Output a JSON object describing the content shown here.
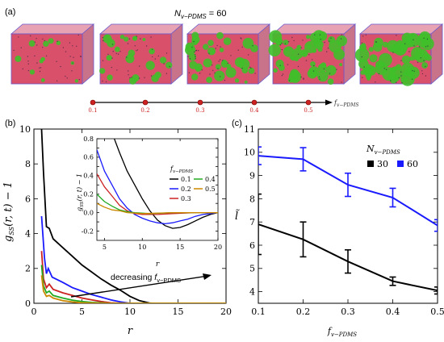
{
  "panel_a": {
    "label": "(a)",
    "title_sym": "N",
    "title_sub": "v−PDMS",
    "title_rest": " = 60",
    "cube_colors": {
      "red": "#d9506a",
      "green": "#3fbf2a",
      "pink": "#e7a3b3",
      "edge": "#6a5acd"
    },
    "green_fractions": [
      0.1,
      0.2,
      0.3,
      0.4,
      0.5
    ],
    "arrow_ticks": [
      "0.1",
      "0.2",
      "0.3",
      "0.4",
      "0.5"
    ],
    "arrow_label": "f",
    "arrow_label_sub": "v−PDMS"
  },
  "chart_data": [
    {
      "type": "line",
      "panel": "(b)",
      "ylabel_main": "g",
      "ylabel_sub": "SS",
      "ylabel_rest": "(r, t) − 1",
      "xlabel": "r",
      "xlim": [
        0,
        20
      ],
      "ylim": [
        0,
        10
      ],
      "xticks": [
        0,
        5,
        10,
        15,
        20
      ],
      "yticks": [
        0,
        2,
        4,
        6,
        8,
        10
      ],
      "annotation_text": "decreasing ",
      "annotation_sym": "f",
      "annotation_sub": "v−PDMS",
      "series": [
        {
          "name": "0.1",
          "color": "#000000",
          "points": [
            [
              0.8,
              10
            ],
            [
              1.0,
              7.5
            ],
            [
              1.3,
              4.4
            ],
            [
              1.6,
              4.3
            ],
            [
              2,
              3.7
            ],
            [
              3,
              3.2
            ],
            [
              4,
              2.7
            ],
            [
              5,
              2.2
            ],
            [
              6,
              1.8
            ],
            [
              7,
              1.4
            ],
            [
              8,
              1.05
            ],
            [
              9,
              0.75
            ],
            [
              10,
              0.4
            ],
            [
              11,
              0.15
            ],
            [
              12,
              0.02
            ],
            [
              14,
              -0.08
            ],
            [
              16,
              -0.05
            ],
            [
              20,
              0
            ]
          ]
        },
        {
          "name": "0.2",
          "color": "#1a1aff",
          "points": [
            [
              0.8,
              5
            ],
            [
              1.1,
              2.6
            ],
            [
              1.3,
              1.7
            ],
            [
              1.5,
              2.0
            ],
            [
              1.9,
              1.5
            ],
            [
              3,
              1.2
            ],
            [
              4,
              0.9
            ],
            [
              5,
              0.7
            ],
            [
              6,
              0.5
            ],
            [
              7,
              0.35
            ],
            [
              8,
              0.2
            ],
            [
              9,
              0.08
            ],
            [
              10,
              0.0
            ],
            [
              12,
              -0.05
            ],
            [
              20,
              0
            ]
          ]
        },
        {
          "name": "0.3",
          "color": "#cc2222",
          "points": [
            [
              0.8,
              3
            ],
            [
              1.0,
              1.4
            ],
            [
              1.3,
              0.9
            ],
            [
              1.6,
              1.1
            ],
            [
              2,
              0.8
            ],
            [
              3,
              0.6
            ],
            [
              4,
              0.45
            ],
            [
              5,
              0.3
            ],
            [
              6,
              0.2
            ],
            [
              7,
              0.1
            ],
            [
              8,
              0.03
            ],
            [
              10,
              -0.02
            ],
            [
              20,
              0
            ]
          ]
        },
        {
          "name": "0.4",
          "color": "#22aa22",
          "points": [
            [
              0.8,
              2.2
            ],
            [
              1.0,
              1.0
            ],
            [
              1.3,
              0.6
            ],
            [
              1.6,
              0.7
            ],
            [
              2,
              0.45
            ],
            [
              3,
              0.3
            ],
            [
              4,
              0.18
            ],
            [
              5,
              0.1
            ],
            [
              6,
              0.05
            ],
            [
              8,
              0.0
            ],
            [
              20,
              0
            ]
          ]
        },
        {
          "name": "0.5",
          "color": "#cc8800",
          "points": [
            [
              0.8,
              1.6
            ],
            [
              1.0,
              0.7
            ],
            [
              1.3,
              0.4
            ],
            [
              1.6,
              0.45
            ],
            [
              2,
              0.3
            ],
            [
              3,
              0.15
            ],
            [
              4,
              0.08
            ],
            [
              5,
              0.03
            ],
            [
              7,
              0.0
            ],
            [
              20,
              0
            ]
          ]
        }
      ]
    },
    {
      "type": "line",
      "panel": "(b) inset",
      "ylabel_main": "g",
      "ylabel_sub": "SS",
      "ylabel_rest": "(r, t) − 1",
      "xlabel": "r",
      "xlim": [
        4,
        20
      ],
      "ylim": [
        -0.3,
        0.8
      ],
      "xticks": [
        5,
        10,
        15,
        20
      ],
      "yticks": [
        -0.2,
        -0.1,
        0.0,
        0.1,
        0.2,
        0.3,
        0.4,
        0.5,
        0.6,
        0.7,
        0.8
      ],
      "ytick_labels": [
        "-0.2",
        "",
        "0.0",
        "",
        "0.2",
        "",
        "0.4",
        "",
        "0.6",
        "",
        "0.8"
      ],
      "legend_title_sym": "f",
      "legend_title_sub": "v−PDMS",
      "legend_position": "top-right",
      "series": [
        {
          "name": "0.1",
          "color": "#000000",
          "points": [
            [
              6.3,
              0.8
            ],
            [
              7,
              0.65
            ],
            [
              8,
              0.45
            ],
            [
              9,
              0.3
            ],
            [
              10,
              0.15
            ],
            [
              11,
              0.02
            ],
            [
              12,
              -0.08
            ],
            [
              13,
              -0.14
            ],
            [
              14,
              -0.17
            ],
            [
              15,
              -0.16
            ],
            [
              16,
              -0.13
            ],
            [
              17,
              -0.09
            ],
            [
              18,
              -0.05
            ],
            [
              19,
              -0.02
            ],
            [
              20,
              0.0
            ]
          ]
        },
        {
          "name": "0.2",
          "color": "#1a1aff",
          "points": [
            [
              4,
              0.68
            ],
            [
              5,
              0.45
            ],
            [
              6,
              0.3
            ],
            [
              7,
              0.15
            ],
            [
              8,
              0.05
            ],
            [
              9,
              -0.02
            ],
            [
              10,
              -0.06
            ],
            [
              11,
              -0.09
            ],
            [
              12,
              -0.11
            ],
            [
              13,
              -0.12
            ],
            [
              14,
              -0.11
            ],
            [
              15,
              -0.09
            ],
            [
              16,
              -0.07
            ],
            [
              17,
              -0.04
            ],
            [
              18,
              -0.02
            ],
            [
              19,
              -0.01
            ],
            [
              20,
              0.0
            ]
          ]
        },
        {
          "name": "0.3",
          "color": "#cc2222",
          "points": [
            [
              4,
              0.42
            ],
            [
              5,
              0.28
            ],
            [
              6,
              0.18
            ],
            [
              7,
              0.08
            ],
            [
              8,
              0.02
            ],
            [
              9,
              -0.01
            ],
            [
              10,
              -0.02
            ],
            [
              12,
              -0.02
            ],
            [
              14,
              -0.01
            ],
            [
              17,
              0.0
            ],
            [
              20,
              0.0
            ]
          ]
        },
        {
          "name": "0.4",
          "color": "#22aa22",
          "points": [
            [
              4,
              0.2
            ],
            [
              5,
              0.12
            ],
            [
              6,
              0.07
            ],
            [
              7,
              0.03
            ],
            [
              8,
              0.01
            ],
            [
              9,
              0.0
            ],
            [
              11,
              -0.01
            ],
            [
              14,
              0.0
            ],
            [
              20,
              0.0
            ]
          ]
        },
        {
          "name": "0.5",
          "color": "#cc8800",
          "points": [
            [
              4,
              0.1
            ],
            [
              5,
              0.06
            ],
            [
              6,
              0.03
            ],
            [
              7,
              0.02
            ],
            [
              8,
              0.0
            ],
            [
              10,
              -0.01
            ],
            [
              14,
              0.0
            ],
            [
              20,
              0.0
            ]
          ]
        }
      ]
    },
    {
      "type": "line",
      "panel": "(c)",
      "ylabel": "l̃",
      "xlabel_sym": "f",
      "xlabel_sub": "v−PDMS",
      "xlim": [
        0.1,
        0.5
      ],
      "ylim": [
        3.5,
        11
      ],
      "xticks": [
        0.1,
        0.2,
        0.3,
        0.4,
        0.5
      ],
      "yticks": [
        4,
        5,
        6,
        7,
        8,
        9,
        10,
        11
      ],
      "legend_title_sym": "N",
      "legend_title_sub": "v−PDMS",
      "legend_position": "top-right",
      "series": [
        {
          "name": "30",
          "color": "#000000",
          "x": [
            0.1,
            0.2,
            0.3,
            0.4,
            0.5
          ],
          "y": [
            6.9,
            6.25,
            5.3,
            4.45,
            4.05
          ],
          "err": [
            1.3,
            0.75,
            0.5,
            0.18,
            0.15
          ]
        },
        {
          "name": "60",
          "color": "#1a1aff",
          "x": [
            0.1,
            0.2,
            0.3,
            0.4,
            0.5
          ],
          "y": [
            9.85,
            9.7,
            8.6,
            8.05,
            6.85
          ],
          "err": [
            0.38,
            0.5,
            0.5,
            0.4,
            0.25
          ]
        }
      ]
    }
  ]
}
